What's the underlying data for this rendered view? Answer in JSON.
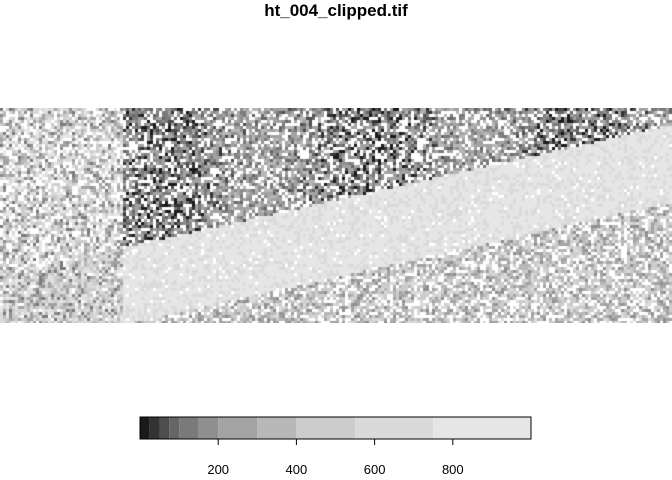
{
  "title": "ht_004_clipped.tif",
  "raster": {
    "colormap": "grey",
    "value_range": [
      0,
      1000
    ],
    "na_color": "#ffffff"
  },
  "legend": {
    "breaks": [
      0,
      25,
      50,
      75,
      100,
      150,
      200,
      300,
      400,
      550,
      750,
      1000
    ],
    "colors": [
      "#1a1a1a",
      "#333333",
      "#4d4d4d",
      "#666666",
      "#7a7a7a",
      "#8f8f8f",
      "#a3a3a3",
      "#b8b8b8",
      "#cccccc",
      "#dadada",
      "#e6e6e6"
    ],
    "ticks": [
      {
        "value": 200,
        "label": "200"
      },
      {
        "value": 400,
        "label": "400"
      },
      {
        "value": 600,
        "label": "600"
      },
      {
        "value": 800,
        "label": "800"
      }
    ],
    "axis_range": [
      0,
      1000
    ]
  }
}
